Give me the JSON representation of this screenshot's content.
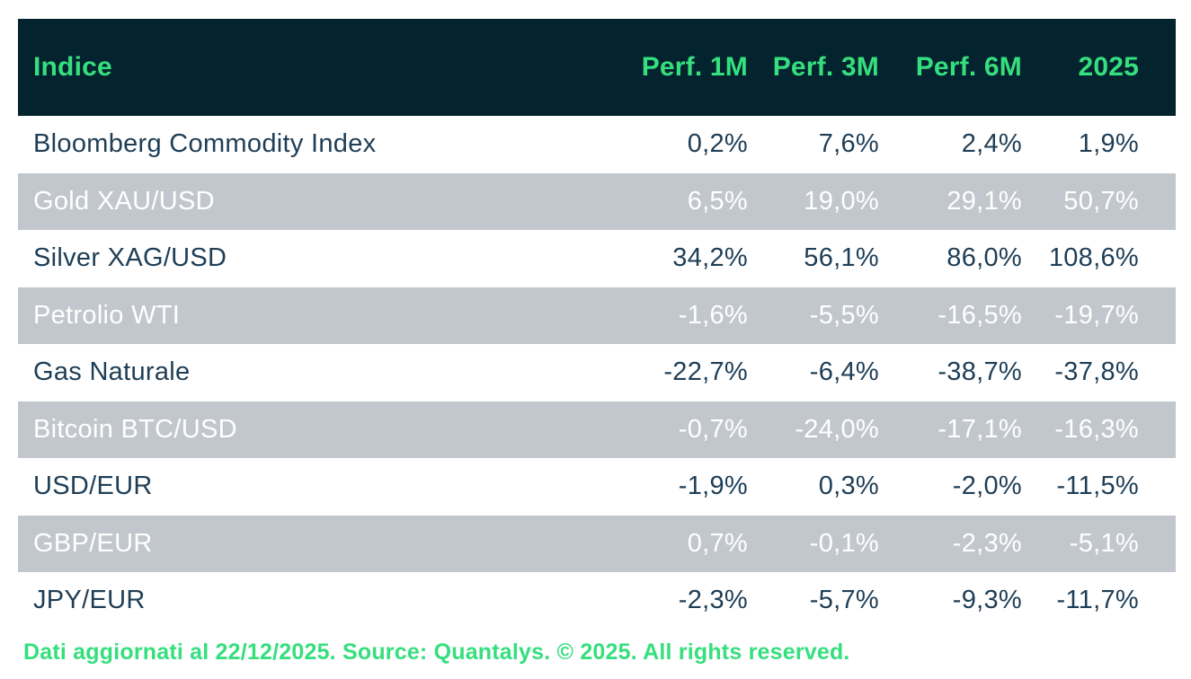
{
  "table": {
    "columns": [
      "Indice",
      "Perf. 1M",
      "Perf. 3M",
      "Perf. 6M",
      "2025"
    ],
    "rows": [
      {
        "label": "Bloomberg Commodity Index",
        "values": [
          "0,2%",
          "7,6%",
          "2,4%",
          "1,9%"
        ]
      },
      {
        "label": "Gold XAU/USD",
        "values": [
          "6,5%",
          "19,0%",
          "29,1%",
          "50,7%"
        ]
      },
      {
        "label": "Silver XAG/USD",
        "values": [
          "34,2%",
          "56,1%",
          "86,0%",
          "108,6%"
        ]
      },
      {
        "label": "Petrolio WTI",
        "values": [
          "-1,6%",
          "-5,5%",
          "-16,5%",
          "-19,7%"
        ]
      },
      {
        "label": "Gas Naturale",
        "values": [
          "-22,7%",
          "-6,4%",
          "-38,7%",
          "-37,8%"
        ]
      },
      {
        "label": "Bitcoin BTC/USD",
        "values": [
          "-0,7%",
          "-24,0%",
          "-17,1%",
          "-16,3%"
        ]
      },
      {
        "label": "USD/EUR",
        "values": [
          "-1,9%",
          "0,3%",
          "-2,0%",
          "-11,5%"
        ]
      },
      {
        "label": "GBP/EUR",
        "values": [
          "0,7%",
          "-0,1%",
          "-2,3%",
          "-5,1%"
        ]
      },
      {
        "label": "JPY/EUR",
        "values": [
          "-2,3%",
          "-5,7%",
          "-9,3%",
          "-11,7%"
        ]
      }
    ]
  },
  "footer": {
    "text": "Dati aggiornati al 22/12/2025. Source: Quantalys. © 2025. All rights reserved."
  },
  "colors": {
    "header_background": "#03232f",
    "accent_green": "#35df7d",
    "stripe_gray": "#c2c7cd",
    "row_text_dark": "#1e3e56",
    "row_text_light": "#ffffff",
    "page_background": "#ffffff"
  }
}
